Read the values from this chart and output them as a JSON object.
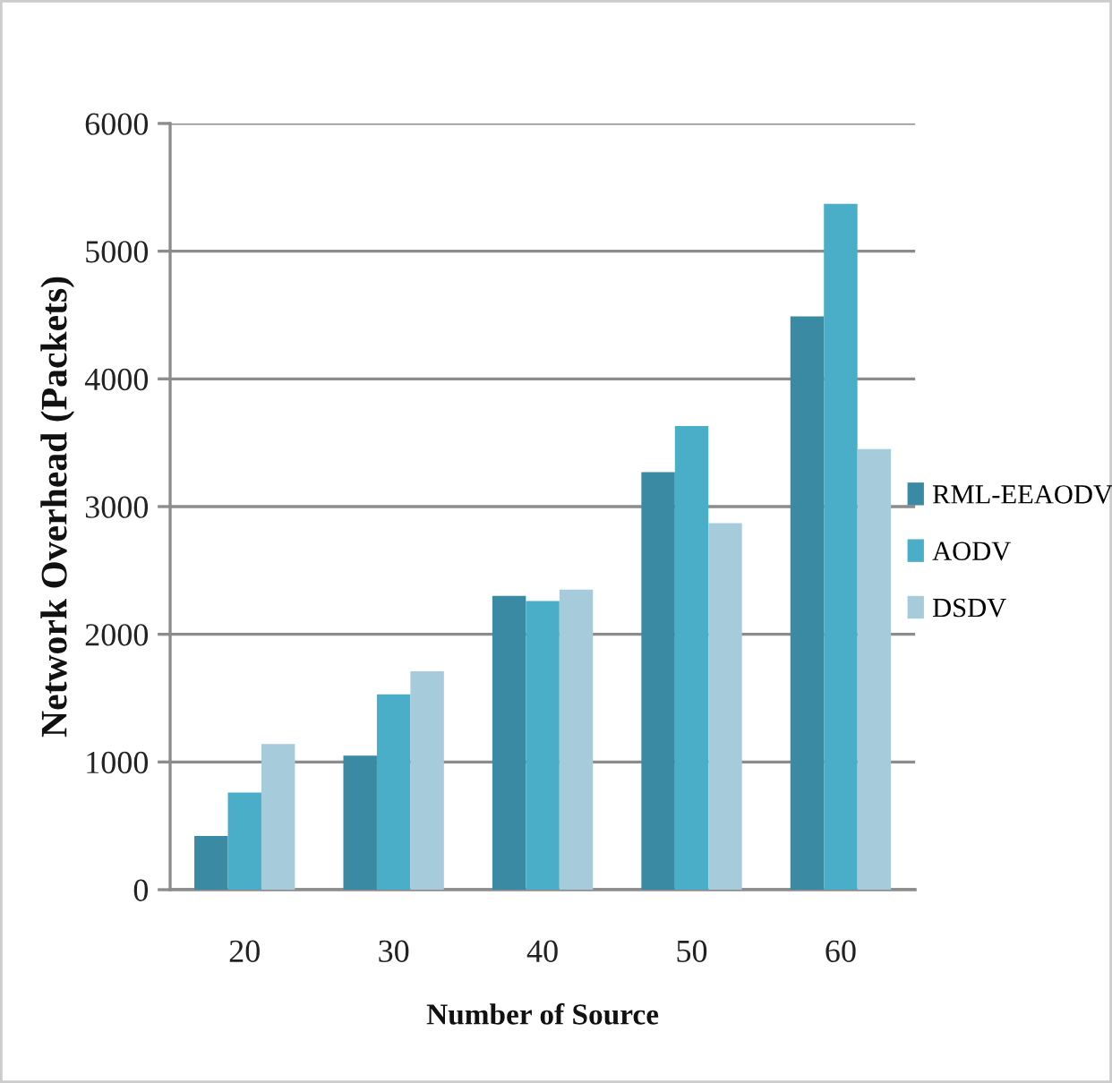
{
  "chart_data": {
    "type": "bar",
    "xlabel": "Number of Source",
    "ylabel": "Network Overhead (Packets)",
    "categories": [
      "20",
      "30",
      "40",
      "50",
      "60"
    ],
    "series": [
      {
        "name": "RML-EEAODV",
        "color": "#3a8aa3",
        "values": [
          420,
          1050,
          2300,
          3270,
          4490
        ]
      },
      {
        "name": "AODV",
        "color": "#4aaec8",
        "values": [
          760,
          1530,
          2260,
          3630,
          5370
        ]
      },
      {
        "name": "DSDV",
        "color": "#a6cbdb",
        "values": [
          1140,
          1710,
          2350,
          2870,
          3450
        ]
      }
    ],
    "ylim": [
      0,
      6000
    ],
    "yticks": [
      0,
      1000,
      2000,
      3000,
      4000,
      5000,
      6000
    ],
    "grid": "y",
    "legend": "right"
  }
}
